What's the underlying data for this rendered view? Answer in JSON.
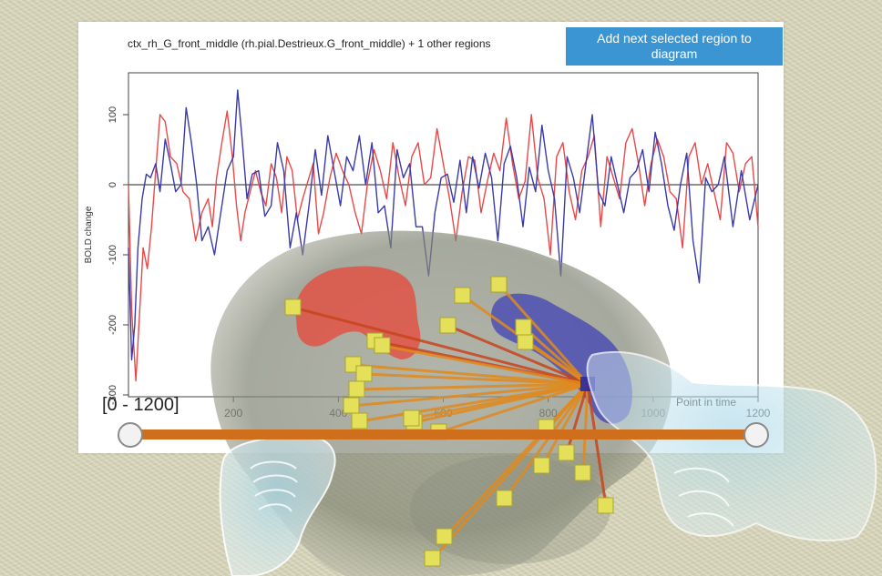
{
  "header": {
    "title": "ctx_rh_G_front_middle (rh.pial.Destrieux.G_front_middle) + 1 other regions",
    "add_button_label": "Add next selected region to diagram"
  },
  "slider": {
    "range_label": "[0 - 1200]",
    "min": 0,
    "max": 1200,
    "low_value": 0,
    "high_value": 1200,
    "track_color": "#cf6f1c"
  },
  "scene": {
    "description": "3D transparent brain with red and blue highlighted regions, yellow node cubes connected by orange edges to a hub, translucent virtual hands",
    "red_region_color": "#e8473a",
    "blue_region_color": "#3c3fb5",
    "node_color": "#e4e05a",
    "edge_color": "#e08a1e"
  },
  "chart_data": {
    "type": "line",
    "title": "ctx_rh_G_front_middle (rh.pial.Destrieux.G_front_middle) + 1 other regions",
    "xlabel": "Point in time",
    "ylabel": "BOLD change",
    "xlim": [
      0,
      1200
    ],
    "ylim": [
      -300,
      150
    ],
    "x_ticks": [
      "200",
      "400",
      "600",
      "800",
      "1000",
      "1200"
    ],
    "y_ticks": [
      "100",
      "0",
      "-100",
      "-200",
      "-300"
    ],
    "zero_line": true,
    "grid": false,
    "series": [
      {
        "name": "region 1 (red)",
        "color": "#e84848",
        "x": [
          0,
          6,
          14,
          20,
          28,
          36,
          44,
          52,
          60,
          70,
          80,
          92,
          104,
          116,
          128,
          140,
          152,
          160,
          168,
          178,
          188,
          198,
          206,
          214,
          222,
          232,
          242,
          252,
          262,
          272,
          282,
          292,
          302,
          312,
          322,
          332,
          342,
          352,
          362,
          372,
          384,
          396,
          408,
          420,
          432,
          444,
          456,
          468,
          480,
          492,
          504,
          516,
          528,
          540,
          552,
          564,
          576,
          588,
          600,
          612,
          624,
          636,
          648,
          660,
          672,
          684,
          696,
          708,
          720,
          732,
          744,
          756,
          768,
          780,
          792,
          804,
          816,
          828,
          840,
          852,
          864,
          876,
          888,
          900,
          912,
          924,
          936,
          948,
          960,
          972,
          984,
          996,
          1008,
          1020,
          1032,
          1044,
          1056,
          1068,
          1080,
          1092,
          1104,
          1116,
          1128,
          1140,
          1152,
          1164,
          1176,
          1188,
          1200
        ],
        "y": [
          0,
          -180,
          -280,
          -200,
          -90,
          -120,
          -60,
          20,
          100,
          90,
          40,
          30,
          -10,
          -20,
          -80,
          -40,
          -20,
          -60,
          10,
          60,
          105,
          40,
          -30,
          -80,
          -40,
          -10,
          20,
          -10,
          -30,
          30,
          10,
          -40,
          40,
          20,
          -50,
          -20,
          5,
          30,
          -70,
          -40,
          10,
          45,
          20,
          0,
          -40,
          -70,
          5,
          50,
          20,
          -20,
          60,
          10,
          -30,
          40,
          60,
          0,
          10,
          80,
          30,
          -20,
          -80,
          -10,
          40,
          35,
          -40,
          5,
          45,
          20,
          95,
          30,
          -20,
          5,
          100,
          10,
          -20,
          -100,
          40,
          60,
          -10,
          -50,
          20,
          40,
          70,
          -60,
          40,
          10,
          -20,
          60,
          80,
          30,
          -30,
          30,
          65,
          40,
          -10,
          -20,
          -90,
          40,
          60,
          0,
          30,
          -10,
          -50,
          60,
          45,
          -10,
          30,
          40,
          -60
        ]
      },
      {
        "name": "region 2 (blue)",
        "color": "#3a3aa8",
        "x": [
          0,
          6,
          12,
          18,
          26,
          34,
          42,
          52,
          60,
          70,
          80,
          90,
          100,
          110,
          120,
          130,
          140,
          152,
          164,
          176,
          188,
          200,
          208,
          216,
          226,
          236,
          248,
          260,
          272,
          284,
          296,
          308,
          320,
          332,
          344,
          356,
          368,
          380,
          392,
          404,
          416,
          428,
          440,
          452,
          464,
          476,
          488,
          500,
          512,
          524,
          536,
          548,
          560,
          572,
          584,
          596,
          608,
          620,
          632,
          644,
          656,
          668,
          680,
          692,
          704,
          716,
          728,
          740,
          752,
          764,
          776,
          788,
          800,
          812,
          824,
          836,
          848,
          860,
          872,
          884,
          896,
          908,
          920,
          932,
          944,
          956,
          968,
          980,
          992,
          1004,
          1016,
          1028,
          1040,
          1052,
          1064,
          1076,
          1088,
          1100,
          1112,
          1124,
          1136,
          1152,
          1168,
          1184,
          1200
        ],
        "y": [
          -90,
          -250,
          -200,
          -90,
          -20,
          15,
          10,
          30,
          -10,
          65,
          30,
          -10,
          0,
          110,
          60,
          0,
          -80,
          -60,
          -100,
          -40,
          20,
          40,
          135,
          70,
          -20,
          15,
          20,
          -45,
          -30,
          60,
          20,
          -90,
          -40,
          -100,
          -30,
          50,
          -15,
          70,
          20,
          -30,
          40,
          20,
          70,
          0,
          60,
          -40,
          -30,
          -90,
          50,
          10,
          30,
          -60,
          -60,
          -130,
          -40,
          10,
          15,
          -25,
          35,
          -40,
          40,
          -5,
          45,
          10,
          -80,
          30,
          55,
          10,
          -60,
          25,
          -10,
          85,
          20,
          -20,
          -130,
          40,
          10,
          -40,
          30,
          100,
          -10,
          -30,
          40,
          0,
          -40,
          10,
          20,
          50,
          -10,
          75,
          30,
          -30,
          -65,
          0,
          45,
          -80,
          -140,
          10,
          -10,
          0,
          40,
          -60,
          20,
          -50,
          0
        ]
      }
    ]
  }
}
